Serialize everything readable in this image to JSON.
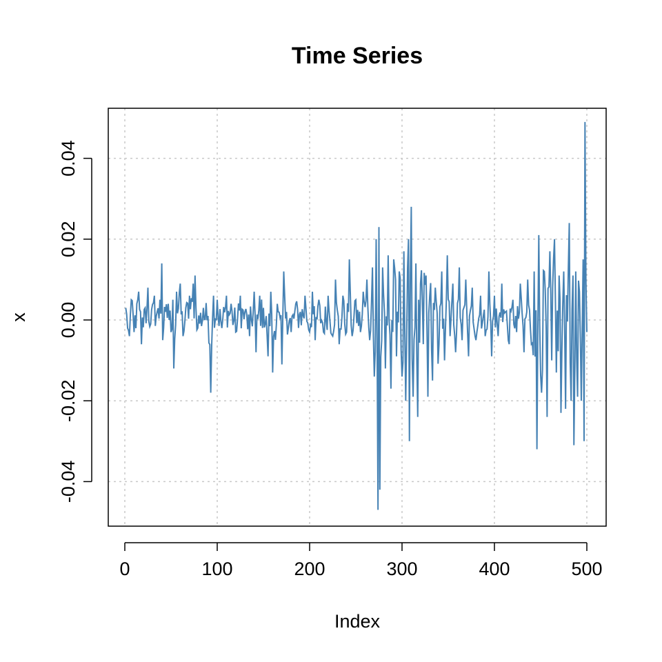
{
  "chart_data": {
    "type": "line",
    "title": "Time Series",
    "xlabel": "Index",
    "ylabel": "x",
    "xlim": [
      0,
      500
    ],
    "ylim": [
      -0.05,
      0.05
    ],
    "x_ticks": [
      0,
      100,
      200,
      300,
      400,
      500
    ],
    "x_tick_labels": [
      "0",
      "100",
      "200",
      "300",
      "400",
      "500"
    ],
    "y_ticks": [
      -0.04,
      -0.02,
      0.0,
      0.02,
      0.04
    ],
    "y_tick_labels": [
      "-0.04",
      "-0.02",
      "0.00",
      "0.02",
      "0.04"
    ],
    "grid": true,
    "line_color": "#4682B4",
    "grid_color": "#c8c8c8",
    "anchors": [
      [
        1,
        0.003
      ],
      [
        3,
        -0.002
      ],
      [
        5,
        -0.004
      ],
      [
        7,
        0.005
      ],
      [
        10,
        -0.003
      ],
      [
        13,
        0.004
      ],
      [
        15,
        0.007
      ],
      [
        18,
        -0.006
      ],
      [
        22,
        0.003
      ],
      [
        25,
        0.008
      ],
      [
        28,
        -0.001
      ],
      [
        32,
        0.006
      ],
      [
        35,
        0.002
      ],
      [
        38,
        0.005
      ],
      [
        40,
        0.014
      ],
      [
        41,
        -0.005
      ],
      [
        44,
        0.002
      ],
      [
        47,
        0.004
      ],
      [
        50,
        -0.003
      ],
      [
        52,
        0.005
      ],
      [
        53,
        -0.012
      ],
      [
        56,
        0.007
      ],
      [
        60,
        0.009
      ],
      [
        63,
        -0.004
      ],
      [
        66,
        0.003
      ],
      [
        70,
        0.006
      ],
      [
        74,
        0.009
      ],
      [
        76,
        0.011
      ],
      [
        79,
        -0.002
      ],
      [
        85,
        0.003
      ],
      [
        90,
        0.001
      ],
      [
        93,
        -0.018
      ],
      [
        96,
        0.006
      ],
      [
        100,
        0.005
      ],
      [
        105,
        -0.002
      ],
      [
        110,
        0.006
      ],
      [
        115,
        0.004
      ],
      [
        120,
        -0.003
      ],
      [
        125,
        0.006
      ],
      [
        130,
        0.002
      ],
      [
        135,
        -0.004
      ],
      [
        140,
        0.007
      ],
      [
        142,
        -0.008
      ],
      [
        146,
        0.006
      ],
      [
        150,
        0.003
      ],
      [
        155,
        -0.009
      ],
      [
        158,
        0.007
      ],
      [
        160,
        -0.013
      ],
      [
        165,
        0.004
      ],
      [
        170,
        -0.011
      ],
      [
        172,
        0.012
      ],
      [
        175,
        0.002
      ],
      [
        180,
        -0.003
      ],
      [
        185,
        0.004
      ],
      [
        190,
        0.002
      ],
      [
        195,
        0.006
      ],
      [
        200,
        -0.003
      ],
      [
        203,
        0.007
      ],
      [
        206,
        -0.005
      ],
      [
        210,
        0.005
      ],
      [
        215,
        -0.003
      ],
      [
        220,
        0.006
      ],
      [
        225,
        -0.004
      ],
      [
        228,
        0.01
      ],
      [
        232,
        -0.006
      ],
      [
        236,
        0.006
      ],
      [
        240,
        -0.003
      ],
      [
        243,
        0.015
      ],
      [
        246,
        -0.004
      ],
      [
        250,
        0.005
      ],
      [
        255,
        -0.003
      ],
      [
        258,
        0.007
      ],
      [
        262,
        0.01
      ],
      [
        265,
        -0.005
      ],
      [
        268,
        0.013
      ],
      [
        270,
        -0.014
      ],
      [
        272,
        0.02
      ],
      [
        274,
        -0.047
      ],
      [
        275,
        0.023
      ],
      [
        276,
        -0.042
      ],
      [
        279,
        0.013
      ],
      [
        282,
        -0.012
      ],
      [
        285,
        0.016
      ],
      [
        288,
        -0.017
      ],
      [
        291,
        0.015
      ],
      [
        294,
        -0.009
      ],
      [
        297,
        0.012
      ],
      [
        300,
        -0.014
      ],
      [
        302,
        0.017
      ],
      [
        304,
        -0.02
      ],
      [
        307,
        0.02
      ],
      [
        308,
        -0.03
      ],
      [
        310,
        0.028
      ],
      [
        312,
        -0.019
      ],
      [
        315,
        0.014
      ],
      [
        317,
        -0.024
      ],
      [
        320,
        0.009
      ],
      [
        323,
        -0.006
      ],
      [
        326,
        0.011
      ],
      [
        328,
        -0.019
      ],
      [
        330,
        0.006
      ],
      [
        333,
        -0.015
      ],
      [
        336,
        0.008
      ],
      [
        340,
        -0.006
      ],
      [
        343,
        0.012
      ],
      [
        346,
        -0.01
      ],
      [
        349,
        0.016
      ],
      [
        352,
        -0.004
      ],
      [
        355,
        0.009
      ],
      [
        358,
        -0.008
      ],
      [
        362,
        0.013
      ],
      [
        365,
        -0.005
      ],
      [
        369,
        0.01
      ],
      [
        372,
        -0.009
      ],
      [
        376,
        0.008
      ],
      [
        380,
        -0.005
      ],
      [
        385,
        0.006
      ],
      [
        390,
        -0.004
      ],
      [
        394,
        0.012
      ],
      [
        397,
        -0.009
      ],
      [
        400,
        0.006
      ],
      [
        404,
        -0.004
      ],
      [
        408,
        0.009
      ],
      [
        412,
        0.002
      ],
      [
        416,
        -0.006
      ],
      [
        420,
        0.005
      ],
      [
        424,
        -0.003
      ],
      [
        428,
        0.009
      ],
      [
        432,
        -0.008
      ],
      [
        436,
        0.01
      ],
      [
        440,
        -0.006
      ],
      [
        443,
        0.012
      ],
      [
        446,
        -0.032
      ],
      [
        448,
        0.021
      ],
      [
        451,
        -0.018
      ],
      [
        454,
        0.012
      ],
      [
        457,
        -0.024
      ],
      [
        460,
        0.017
      ],
      [
        462,
        -0.01
      ],
      [
        465,
        0.02
      ],
      [
        467,
        -0.013
      ],
      [
        470,
        0.011
      ],
      [
        472,
        -0.023
      ],
      [
        475,
        0.012
      ],
      [
        477,
        -0.022
      ],
      [
        480,
        0.013
      ],
      [
        481,
        0.024
      ],
      [
        483,
        -0.02
      ],
      [
        485,
        0.011
      ],
      [
        486,
        -0.031
      ],
      [
        488,
        0.012
      ],
      [
        490,
        -0.019
      ],
      [
        492,
        0.007
      ],
      [
        494,
        -0.02
      ],
      [
        496,
        0.015
      ],
      [
        497,
        -0.03
      ],
      [
        498,
        0.049
      ],
      [
        499,
        0.01
      ],
      [
        500,
        -0.003
      ]
    ]
  }
}
